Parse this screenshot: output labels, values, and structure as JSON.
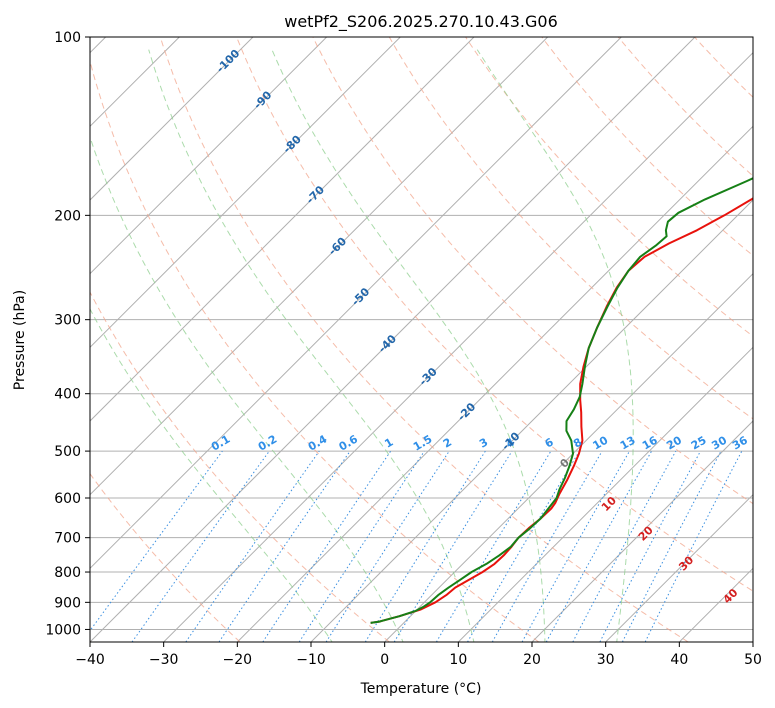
{
  "chart_data": {
    "type": "line",
    "title": "wetPf2_S206.2025.270.10.43.G06",
    "xlabel": "Temperature (°C)",
    "ylabel": "Pressure (hPa)",
    "xlim": [
      -40,
      50
    ],
    "ylim": [
      1050,
      100
    ],
    "y_scale": "log",
    "x_ticks": [
      -40,
      -30,
      -20,
      -10,
      0,
      10,
      20,
      30,
      40,
      50
    ],
    "x_tick_labels": [
      "−40",
      "−30",
      "−20",
      "−10",
      "0",
      "10",
      "20",
      "30",
      "40",
      "50"
    ],
    "y_ticks": [
      1000,
      900,
      800,
      700,
      600,
      500,
      400,
      300,
      200,
      100
    ],
    "y_tick_labels": [
      "1000",
      "900",
      "800",
      "700",
      "600",
      "500",
      "400",
      "300",
      "200",
      "100"
    ],
    "background": {
      "skew_isotherms_every_C": 10,
      "dry_adiabats_theta_K": [
        210,
        230,
        250,
        270,
        290,
        310,
        330,
        350,
        370,
        390,
        410,
        430,
        450,
        470,
        490,
        510
      ],
      "moist_adiabats_thetaw_C": [
        -10,
        0,
        10,
        20,
        30
      ],
      "mixing_ratio_lines_gkg": [
        "0.1",
        "0.2",
        "0.4",
        "0.6",
        "1",
        "1.5",
        "2",
        "3",
        "4",
        "6",
        "8",
        "10",
        "13",
        "16",
        "20",
        "25",
        "30",
        "36"
      ]
    },
    "isotherm_labels": [
      {
        "text": "-100",
        "p": 110
      },
      {
        "text": "-90",
        "p": 128
      },
      {
        "text": "-80",
        "p": 152
      },
      {
        "text": "-70",
        "p": 185
      },
      {
        "text": "-60",
        "p": 226
      },
      {
        "text": "-50",
        "p": 275
      },
      {
        "text": "-40",
        "p": 330
      },
      {
        "text": "-30",
        "p": 375
      },
      {
        "text": "-20",
        "p": 430
      },
      {
        "text": "-10",
        "p": 482
      }
    ],
    "wetbulb_zero_labels": [
      {
        "text": "0",
        "T": 24.5,
        "p": 525
      },
      {
        "text": "10",
        "T": 30.5,
        "p": 615
      },
      {
        "text": "20",
        "T": 35.5,
        "p": 690
      },
      {
        "text": "30",
        "T": 41,
        "p": 775
      },
      {
        "text": "40",
        "T": 47,
        "p": 880
      }
    ],
    "series": [
      {
        "name": "Temperature",
        "color": "#e8120c",
        "points": [
          [
            -4.5,
            975
          ],
          [
            -3.5,
            970
          ],
          [
            -1.5,
            950
          ],
          [
            0.5,
            925
          ],
          [
            1.5,
            900
          ],
          [
            2.0,
            875
          ],
          [
            2.2,
            850
          ],
          [
            3.0,
            825
          ],
          [
            3.8,
            800
          ],
          [
            4.3,
            775
          ],
          [
            4.4,
            750
          ],
          [
            4.3,
            725
          ],
          [
            4.0,
            700
          ],
          [
            4.1,
            675
          ],
          [
            4.4,
            650
          ],
          [
            4.5,
            625
          ],
          [
            4.3,
            612
          ],
          [
            3.6,
            590
          ],
          [
            2.8,
            560
          ],
          [
            1.8,
            530
          ],
          [
            0.8,
            505
          ],
          [
            -0.5,
            480
          ],
          [
            -2.5,
            455
          ],
          [
            -4.5,
            430
          ],
          [
            -6.3,
            410
          ],
          [
            -8.5,
            385
          ],
          [
            -10.4,
            360
          ],
          [
            -12.2,
            335
          ],
          [
            -13.8,
            310
          ],
          [
            -15.4,
            285
          ],
          [
            -16.6,
            265
          ],
          [
            -17.3,
            248
          ],
          [
            -17.0,
            235
          ],
          [
            -15.5,
            223
          ],
          [
            -13.5,
            212
          ],
          [
            -11.8,
            200
          ],
          [
            -10.3,
            188
          ],
          [
            -9.1,
            175
          ],
          [
            -7.5,
            162
          ],
          [
            -5.3,
            150
          ],
          [
            -3.0,
            138
          ],
          [
            -1.3,
            126
          ],
          [
            0.1,
            115
          ],
          [
            1.6,
            106
          ],
          [
            2.2,
            100
          ]
        ]
      },
      {
        "name": "Dewpoint",
        "color": "#168016",
        "points": [
          [
            -4.5,
            975
          ],
          [
            -3.5,
            970
          ],
          [
            -1.5,
            950
          ],
          [
            0.0,
            930
          ],
          [
            0.5,
            915
          ],
          [
            0.8,
            900
          ],
          [
            0.9,
            875
          ],
          [
            1.3,
            850
          ],
          [
            1.8,
            825
          ],
          [
            2.3,
            800
          ],
          [
            3.2,
            775
          ],
          [
            3.8,
            750
          ],
          [
            4.2,
            725
          ],
          [
            4.0,
            700
          ],
          [
            4.3,
            675
          ],
          [
            4.4,
            650
          ],
          [
            4.1,
            625
          ],
          [
            3.8,
            600
          ],
          [
            3.0,
            580
          ],
          [
            2.2,
            555
          ],
          [
            1.2,
            530
          ],
          [
            0.0,
            505
          ],
          [
            -2.0,
            480
          ],
          [
            -4.0,
            462
          ],
          [
            -5.3,
            445
          ],
          [
            -5.9,
            425
          ],
          [
            -6.8,
            405
          ],
          [
            -8.2,
            385
          ],
          [
            -10.2,
            360
          ],
          [
            -12.2,
            335
          ],
          [
            -13.8,
            310
          ],
          [
            -15.3,
            285
          ],
          [
            -16.5,
            265
          ],
          [
            -17.3,
            248
          ],
          [
            -17.6,
            235
          ],
          [
            -17.0,
            225
          ],
          [
            -16.8,
            217
          ],
          [
            -17.7,
            212
          ],
          [
            -18.6,
            205
          ],
          [
            -18.4,
            198
          ],
          [
            -16.6,
            188
          ],
          [
            -13.4,
            175
          ],
          [
            -10.2,
            162
          ],
          [
            -7.5,
            150
          ],
          [
            -5.4,
            138
          ],
          [
            -3.1,
            126
          ],
          [
            -0.8,
            115
          ],
          [
            0.9,
            106
          ],
          [
            1.5,
            100
          ]
        ]
      }
    ]
  }
}
